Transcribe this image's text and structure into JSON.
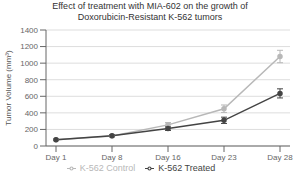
{
  "chart_data": {
    "type": "line",
    "title": "Effect of treatment with MIA-602 on the growth of\nDoxorubicin-Resistant K-562 tumors",
    "ylabel": "Tumor Volume (mm³)",
    "categories": [
      "Day 1",
      "Day 8",
      "Day 16",
      "Day 23",
      "Day 28"
    ],
    "series": [
      {
        "name": "K-562 Control",
        "color": "#b8b8b8",
        "values": [
          75,
          120,
          255,
          450,
          1080
        ],
        "errors": [
          8,
          12,
          28,
          45,
          75
        ],
        "marker": "circle",
        "line_style": "solid"
      },
      {
        "name": "K-562 Treated",
        "color": "#444444",
        "values": [
          75,
          125,
          210,
          310,
          635
        ],
        "errors": [
          8,
          12,
          22,
          38,
          55
        ],
        "marker": "circle",
        "line_style": "solid"
      }
    ],
    "ylim": [
      0,
      1400
    ],
    "yticks": [
      0,
      200,
      400,
      600,
      800,
      1000,
      1200,
      1400
    ],
    "grid": true,
    "legend": "bottom"
  }
}
